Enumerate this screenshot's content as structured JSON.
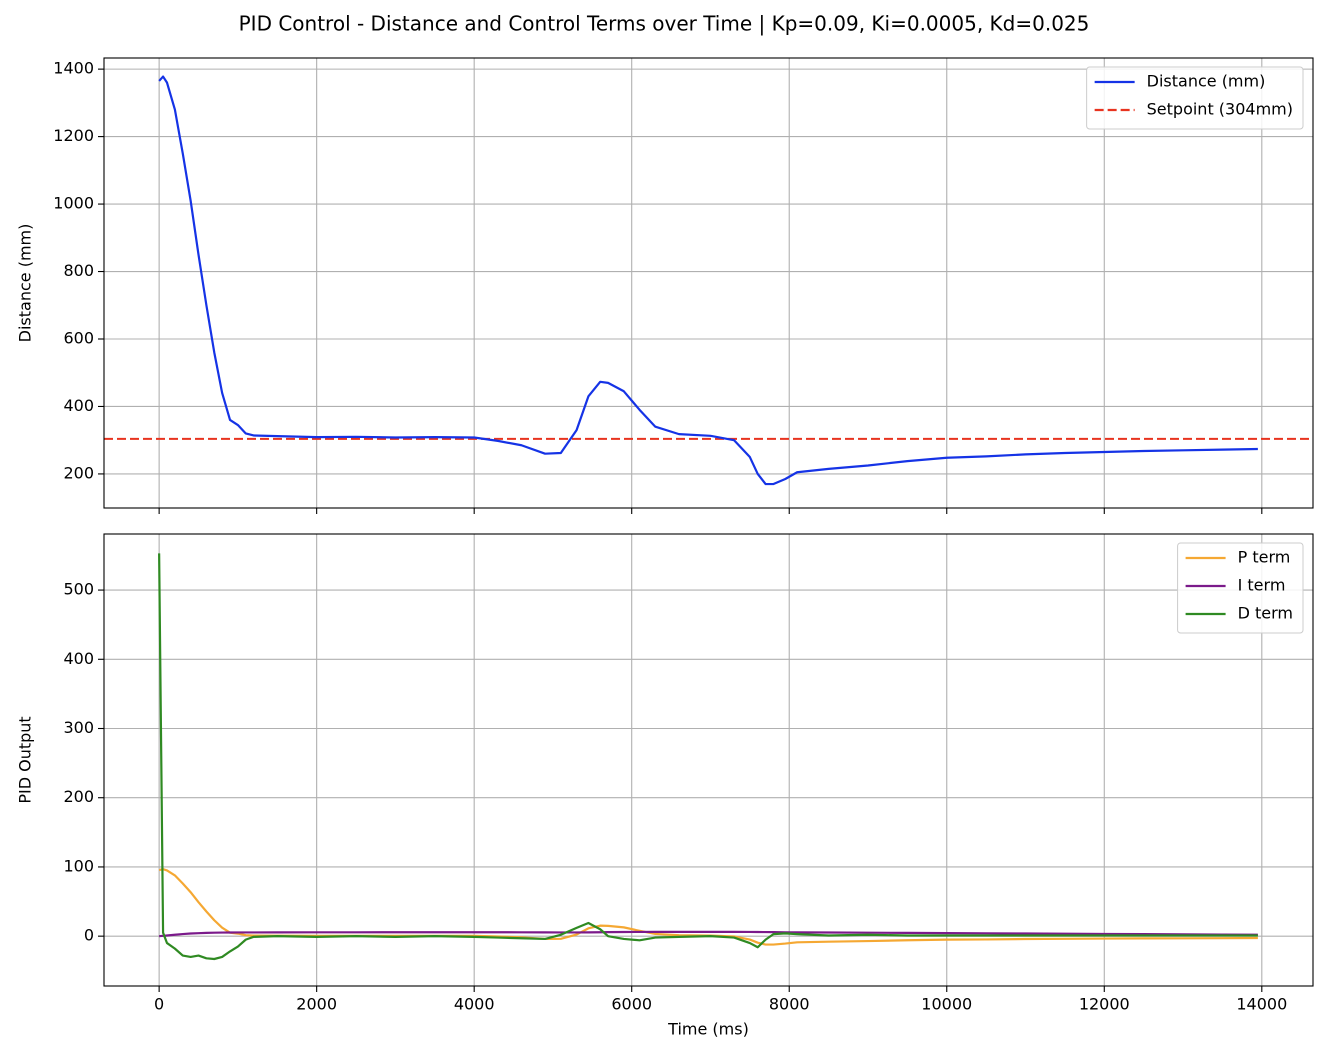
{
  "title": "PID Control - Distance and Control Terms over Time | Kp=0.09, Ki=0.0005, Kd=0.025",
  "chart_data": [
    {
      "type": "line",
      "ylabel": "Distance (mm)",
      "show_xtick_labels": false,
      "grid": true,
      "legend": "upper right",
      "xlim": [
        -700,
        14650
      ],
      "ylim": [
        99,
        1433
      ],
      "xticks": [
        0,
        2000,
        4000,
        6000,
        8000,
        10000,
        12000,
        14000
      ],
      "yticks": [
        200,
        400,
        600,
        800,
        1000,
        1200,
        1400
      ],
      "x": [
        0,
        50,
        100,
        200,
        300,
        400,
        500,
        600,
        700,
        800,
        900,
        1000,
        1100,
        1200,
        1500,
        2000,
        2500,
        3000,
        3500,
        4000,
        4300,
        4600,
        4900,
        5100,
        5300,
        5450,
        5600,
        5700,
        5900,
        6100,
        6300,
        6600,
        7000,
        7300,
        7500,
        7600,
        7700,
        7800,
        7950,
        8100,
        8500,
        9000,
        9500,
        10000,
        10500,
        11000,
        11500,
        12000,
        12500,
        13000,
        13500,
        13950
      ],
      "series": [
        {
          "name": "Distance (mm)",
          "color": "#1533e6",
          "style": "solid",
          "values": [
            1365,
            1378,
            1360,
            1280,
            1150,
            1010,
            850,
            700,
            560,
            440,
            360,
            345,
            320,
            314,
            312,
            309,
            310,
            308,
            309,
            308,
            298,
            285,
            260,
            262,
            330,
            430,
            473,
            470,
            445,
            390,
            340,
            318,
            313,
            300,
            250,
            200,
            170,
            170,
            185,
            205,
            215,
            225,
            238,
            248,
            252,
            258,
            262,
            265,
            268,
            270,
            272,
            274
          ]
        }
      ],
      "hlines": [
        {
          "name": "Setpoint (304mm)",
          "value": 304,
          "color": "#e8331f",
          "style": "dashed"
        }
      ]
    },
    {
      "type": "line",
      "ylabel": "PID Output",
      "xlabel": "Time (ms)",
      "show_xtick_labels": true,
      "grid": true,
      "legend": "upper right",
      "xlim": [
        -700,
        14650
      ],
      "ylim": [
        -72,
        581
      ],
      "xticks": [
        0,
        2000,
        4000,
        6000,
        8000,
        10000,
        12000,
        14000
      ],
      "yticks": [
        0,
        100,
        200,
        300,
        400,
        500
      ],
      "x": [
        0,
        50,
        100,
        200,
        300,
        400,
        500,
        600,
        700,
        800,
        900,
        1000,
        1100,
        1200,
        1500,
        2000,
        2500,
        3000,
        3500,
        4000,
        4300,
        4600,
        4900,
        5100,
        5300,
        5450,
        5600,
        5700,
        5900,
        6100,
        6300,
        6600,
        7000,
        7300,
        7500,
        7600,
        7700,
        7800,
        7950,
        8100,
        8500,
        9000,
        9500,
        10000,
        10500,
        11000,
        11500,
        12000,
        12500,
        13000,
        13500,
        13950
      ],
      "series": [
        {
          "name": "P term",
          "color": "#f5a833",
          "style": "solid",
          "values": [
            95.5,
            96.7,
            95.0,
            87.8,
            76.1,
            63.5,
            49.1,
            35.6,
            23.0,
            12.2,
            5.0,
            3.7,
            1.4,
            0.9,
            0.7,
            0.5,
            0.5,
            0.4,
            0.5,
            0.4,
            -0.5,
            -1.7,
            -4.0,
            -3.8,
            2.3,
            11.3,
            15.2,
            14.9,
            12.7,
            7.7,
            3.2,
            1.3,
            0.8,
            -0.4,
            -4.9,
            -9.4,
            -12.1,
            -12.1,
            -10.7,
            -8.9,
            -8.0,
            -7.1,
            -5.9,
            -5.0,
            -4.7,
            -4.1,
            -3.8,
            -3.5,
            -3.2,
            -3.1,
            -2.9,
            -2.7
          ]
        },
        {
          "name": "I term",
          "color": "#7b1a8a",
          "style": "solid",
          "values": [
            0,
            0.5,
            1,
            2,
            3,
            3.8,
            4.3,
            4.7,
            5,
            5.2,
            5.3,
            5.4,
            5.4,
            5.4,
            5.5,
            5.6,
            5.6,
            5.7,
            5.7,
            5.7,
            5.7,
            5.6,
            5.5,
            5.4,
            5.4,
            5.5,
            5.7,
            5.8,
            6,
            6.1,
            6.2,
            6.2,
            6.2,
            6.2,
            6.1,
            6.0,
            5.9,
            5.8,
            5.6,
            5.5,
            5.3,
            5.0,
            4.7,
            4.4,
            4.1,
            3.8,
            3.5,
            3.2,
            2.9,
            2.6,
            2.3,
            2.0
          ]
        },
        {
          "name": "D term",
          "color": "#2f8a22",
          "style": "solid",
          "values": [
            553,
            5,
            -10,
            -18,
            -28,
            -30,
            -28,
            -32,
            -33,
            -30,
            -22,
            -15,
            -5,
            -1,
            0,
            -1,
            0,
            -1,
            0,
            -1,
            -2,
            -3,
            -4,
            2,
            12,
            19,
            10,
            0,
            -4,
            -6,
            -2,
            -1,
            0,
            -2,
            -10,
            -16,
            -5,
            3,
            4,
            3,
            1,
            2,
            1,
            1,
            1,
            1,
            1,
            1,
            1,
            1,
            1,
            1
          ]
        }
      ]
    }
  ]
}
